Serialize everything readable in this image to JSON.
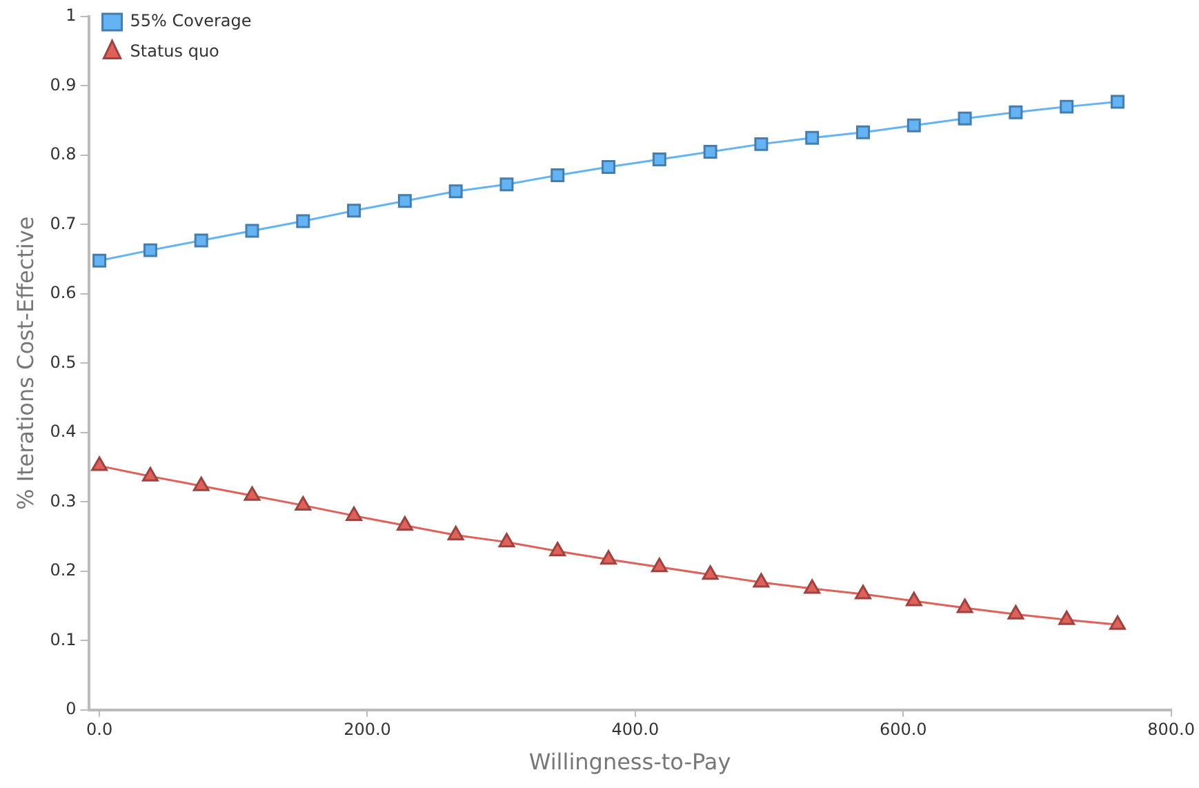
{
  "chart_data": {
    "type": "line",
    "xlabel": "Willingness-to-Pay",
    "ylabel": "% Iterations Cost-Effective",
    "x": [
      0,
      38,
      76,
      114,
      152,
      190,
      228,
      266,
      304,
      342,
      380,
      418,
      456,
      494,
      532,
      570,
      608,
      646,
      684,
      722,
      760
    ],
    "series": [
      {
        "name": "55% Coverage",
        "color": "#63b3f5",
        "marker": "square",
        "values": [
          0.648,
          0.663,
          0.677,
          0.691,
          0.705,
          0.72,
          0.734,
          0.748,
          0.758,
          0.771,
          0.783,
          0.794,
          0.805,
          0.816,
          0.825,
          0.833,
          0.843,
          0.853,
          0.862,
          0.87,
          0.877
        ]
      },
      {
        "name": "Status quo",
        "color": "#e0605a",
        "marker": "triangle",
        "values": [
          0.352,
          0.337,
          0.323,
          0.309,
          0.295,
          0.28,
          0.266,
          0.252,
          0.242,
          0.229,
          0.217,
          0.206,
          0.195,
          0.184,
          0.175,
          0.167,
          0.157,
          0.147,
          0.138,
          0.13,
          0.123
        ]
      }
    ],
    "xlim": [
      -8,
      800
    ],
    "xticks": [
      {
        "value": 0,
        "label": "0.0"
      },
      {
        "value": 200,
        "label": "200.0"
      },
      {
        "value": 400,
        "label": "400.0"
      },
      {
        "value": 600,
        "label": "600.0"
      },
      {
        "value": 800,
        "label": "800.0"
      }
    ],
    "ylim": [
      0,
      1
    ],
    "yticks": [
      0,
      0.1,
      0.2,
      0.3,
      0.4,
      0.5,
      0.6,
      0.7,
      0.8,
      0.9,
      1
    ],
    "grid": false,
    "legend": "top left",
    "line_style": "solid"
  }
}
